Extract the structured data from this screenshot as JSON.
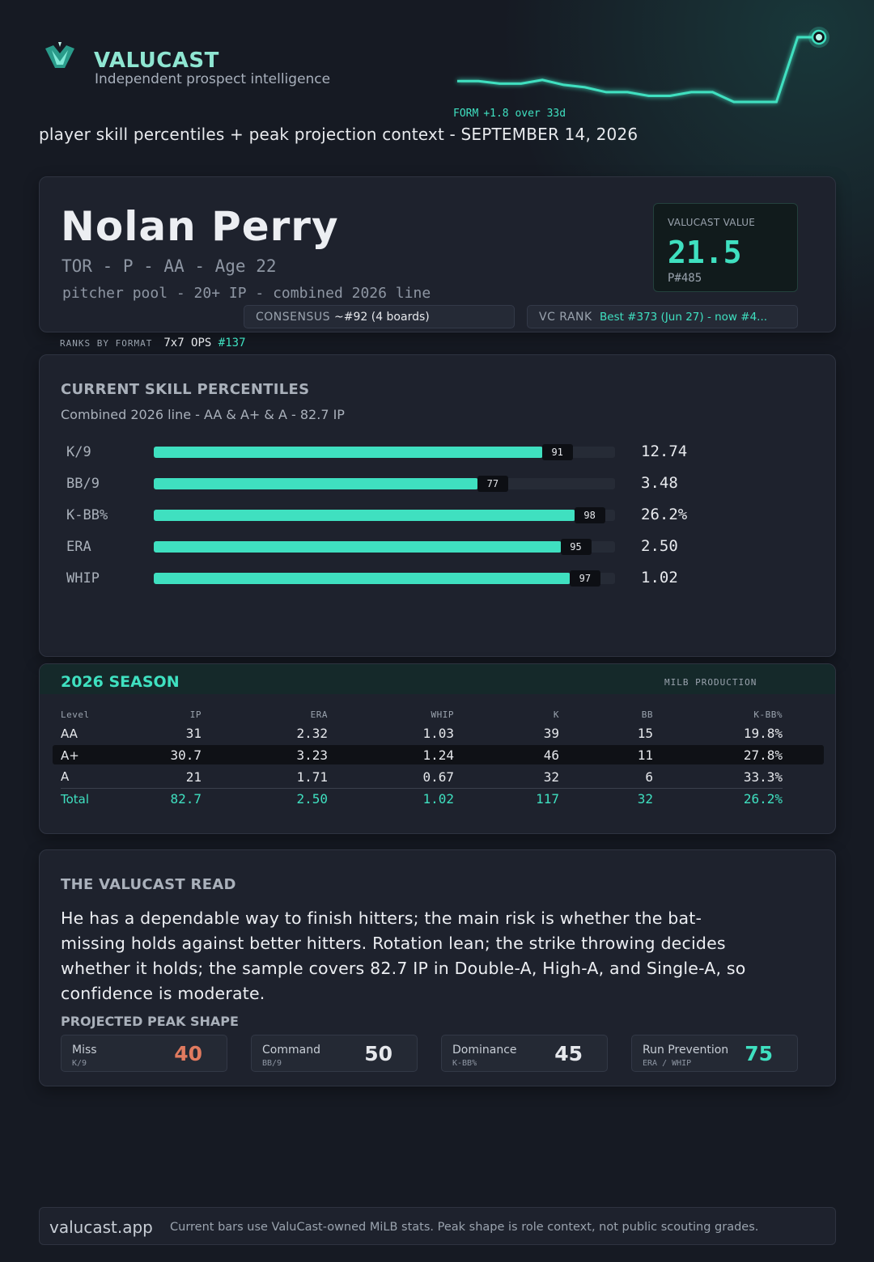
{
  "header": {
    "brand": "VALUCAST",
    "tagline": "Independent prospect intelligence",
    "form_label": "FORM",
    "form_value": "+1.8 over 33d",
    "form_series": [
      0,
      0,
      -0.1,
      -0.1,
      0.05,
      -0.15,
      -0.25,
      -0.45,
      -0.45,
      -0.6,
      -0.6,
      -0.45,
      -0.45,
      -0.85,
      -0.85,
      -0.85,
      1.8,
      1.8
    ],
    "subtitle": "player skill percentiles + peak projection context - SEPTEMBER 14, 2026"
  },
  "player": {
    "name": "Nolan Perry",
    "meta": "TOR - P - AA - Age 22",
    "pool": "pitcher pool - 20+ IP - combined 2026 line",
    "value_label": "VALUCAST VALUE",
    "value": "21.5",
    "prank": "P#485",
    "consensus_label": "CONSENSUS",
    "consensus_value": "~#92 (4 boards)",
    "vcrank_label": "VC RANK",
    "vcrank_value": "Best #373 (Jun 27) - now #4..."
  },
  "ranks_by_format": {
    "label": "RANKS BY FORMAT",
    "format": "7x7 OPS",
    "rank": "#137"
  },
  "percentiles": {
    "title": "CURRENT SKILL PERCENTILES",
    "subtitle": "Combined 2026 line - AA & A+ & A - 82.7 IP",
    "rows": [
      {
        "label": "K/9",
        "pct": 91,
        "pct_text": "91",
        "stat": "12.74"
      },
      {
        "label": "BB/9",
        "pct": 77,
        "pct_text": "77",
        "stat": "3.48"
      },
      {
        "label": "K-BB%",
        "pct": 98,
        "pct_text": "98",
        "stat": "26.2%"
      },
      {
        "label": "ERA",
        "pct": 95,
        "pct_text": "95",
        "stat": "2.50"
      },
      {
        "label": "WHIP",
        "pct": 97,
        "pct_text": "97",
        "stat": "1.02"
      }
    ]
  },
  "season": {
    "title": "2026 SEASON",
    "tag": "MILB PRODUCTION",
    "columns": [
      "Level",
      "IP",
      "ERA",
      "WHIP",
      "K",
      "BB",
      "K-BB%"
    ],
    "rows": [
      [
        "AA",
        "31",
        "2.32",
        "1.03",
        "39",
        "15",
        "19.8%"
      ],
      [
        "A+",
        "30.7",
        "3.23",
        "1.24",
        "46",
        "11",
        "27.8%"
      ],
      [
        "A",
        "21",
        "1.71",
        "0.67",
        "32",
        "6",
        "33.3%"
      ]
    ],
    "total": [
      "Total",
      "82.7",
      "2.50",
      "1.02",
      "117",
      "32",
      "26.2%"
    ]
  },
  "read": {
    "title": "THE VALUCAST READ",
    "text": "He has a dependable way to finish hitters; the main risk is whether the bat-missing holds against better hitters. Rotation lean; the strike throwing decides whether it holds; the sample covers 82.7 IP in Double-A, High-A, and Single-A, so confidence is moderate.",
    "peak_title": "PROJECTED PEAK SHAPE",
    "peaks": [
      {
        "name": "Miss",
        "metric": "K/9",
        "score": "40",
        "color": "#e07a5f"
      },
      {
        "name": "Command",
        "metric": "BB/9",
        "score": "50",
        "color": "#e6e8ec"
      },
      {
        "name": "Dominance",
        "metric": "K-BB%",
        "score": "45",
        "color": "#e6e8ec"
      },
      {
        "name": "Run Prevention",
        "metric": "ERA / WHIP",
        "score": "75",
        "color": "#3fe0c0"
      }
    ]
  },
  "footer": {
    "site": "valucast.app",
    "note": "Current bars use ValuCast-owned MiLB stats. Peak shape is role context, not public scouting grades."
  },
  "colors": {
    "accent": "#3fe0c0",
    "background": "#161a23",
    "card": "#1e222d",
    "warn": "#e07a5f"
  }
}
